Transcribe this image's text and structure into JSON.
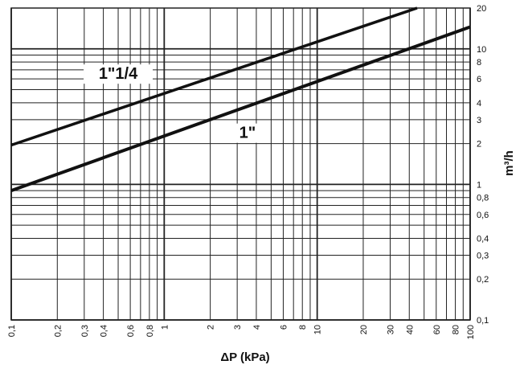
{
  "chart_data": {
    "type": "line",
    "title": "",
    "xlabel": "ΔP (kPa)",
    "ylabel": "m³/h",
    "x_scale": "log",
    "y_scale": "log",
    "xlim": [
      0.1,
      100
    ],
    "ylim": [
      0.1,
      20
    ],
    "grid": true,
    "x_ticks": [
      {
        "value": 0.1,
        "label": "0,1"
      },
      {
        "value": 0.2,
        "label": "0,2"
      },
      {
        "value": 0.3,
        "label": "0,3"
      },
      {
        "value": 0.4,
        "label": "0,4"
      },
      {
        "value": 0.6,
        "label": "0,6"
      },
      {
        "value": 0.8,
        "label": "0,8"
      },
      {
        "value": 1,
        "label": "1"
      },
      {
        "value": 2,
        "label": "2"
      },
      {
        "value": 3,
        "label": "3"
      },
      {
        "value": 4,
        "label": "4"
      },
      {
        "value": 6,
        "label": "6"
      },
      {
        "value": 8,
        "label": "8"
      },
      {
        "value": 10,
        "label": "10"
      },
      {
        "value": 20,
        "label": "20"
      },
      {
        "value": 30,
        "label": "30"
      },
      {
        "value": 40,
        "label": "40"
      },
      {
        "value": 60,
        "label": "60"
      },
      {
        "value": 80,
        "label": "80"
      },
      {
        "value": 100,
        "label": "100"
      }
    ],
    "y_ticks": [
      {
        "value": 0.1,
        "label": "0,1"
      },
      {
        "value": 0.2,
        "label": "0,2"
      },
      {
        "value": 0.3,
        "label": "0,3"
      },
      {
        "value": 0.4,
        "label": "0,4"
      },
      {
        "value": 0.6,
        "label": "0,6"
      },
      {
        "value": 0.8,
        "label": "0,8"
      },
      {
        "value": 1,
        "label": "1"
      },
      {
        "value": 2,
        "label": "2"
      },
      {
        "value": 3,
        "label": "3"
      },
      {
        "value": 4,
        "label": "4"
      },
      {
        "value": 6,
        "label": "6"
      },
      {
        "value": 8,
        "label": "8"
      },
      {
        "value": 10,
        "label": "10"
      },
      {
        "value": 20,
        "label": "20"
      }
    ],
    "series": [
      {
        "name": "1\"1/4",
        "x": [
          0.1,
          45
        ],
        "y": [
          1.95,
          20
        ]
      },
      {
        "name": "1\"",
        "x": [
          0.1,
          100
        ],
        "y": [
          0.9,
          14.5
        ]
      }
    ]
  },
  "colors": {
    "line": "#111111",
    "grid": "#222222",
    "background": "#ffffff"
  }
}
